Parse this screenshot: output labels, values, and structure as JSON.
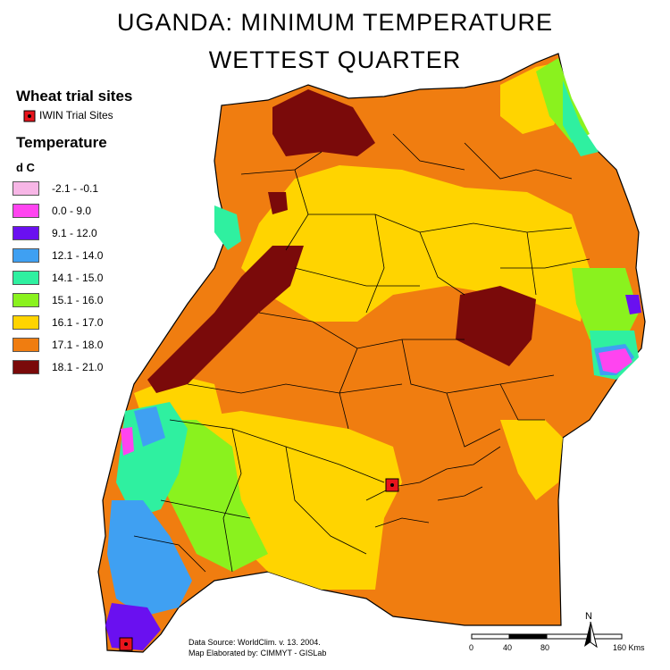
{
  "title": {
    "line1": "UGANDA:  MINIMUM  TEMPERATURE",
    "line2": "WETTEST QUARTER"
  },
  "legend": {
    "sites_heading": "Wheat trial sites",
    "site_label": "IWIN Trial Sites",
    "temp_heading": "Temperature",
    "unit": "d C",
    "classes": [
      {
        "label": "-2.1 - -0.1",
        "color": "#f7b6e6"
      },
      {
        "label": "0.0 - 9.0",
        "color": "#ff44f0"
      },
      {
        "label": "9.1 - 12.0",
        "color": "#6a10f0"
      },
      {
        "label": "12.1 - 14.0",
        "color": "#3fa0f2"
      },
      {
        "label": "14.1 - 15.0",
        "color": "#2ff0a0"
      },
      {
        "label": "15.1 - 16.0",
        "color": "#8af21e"
      },
      {
        "label": "16.1 - 17.0",
        "color": "#ffd400"
      },
      {
        "label": "17.1 - 18.0",
        "color": "#f07d10"
      },
      {
        "label": "18.1 - 21.0",
        "color": "#7a0a0a"
      }
    ]
  },
  "credits": {
    "line1": "Data Source: WorldClim. v. 13.  2004.",
    "line2": "Map Elaborated by: CIMMYT - GISLab"
  },
  "scale": {
    "labels": [
      "0",
      "40",
      "80",
      "160 Kms"
    ]
  },
  "north": "N",
  "colors": {
    "site_marker": "#e8141c",
    "border": "#000000"
  }
}
